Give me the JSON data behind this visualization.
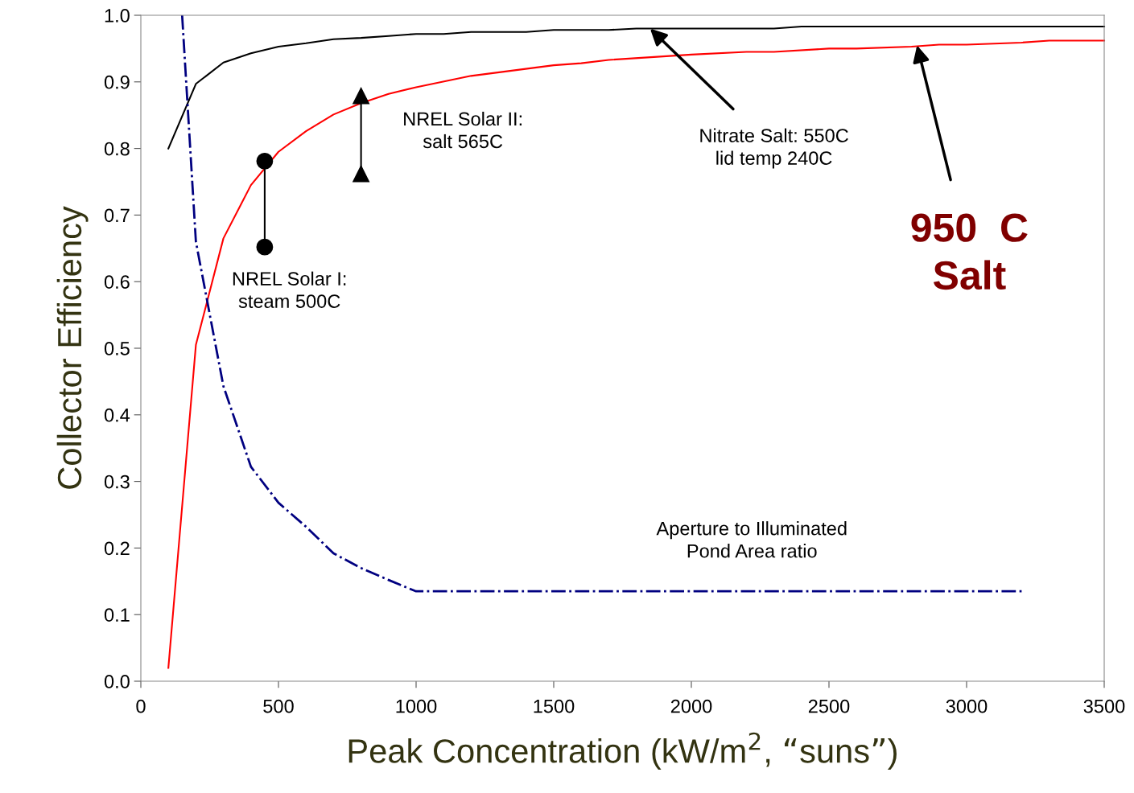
{
  "chart_data": {
    "type": "line",
    "xlabel": "Peak Concentration (kW/m$^{2}$, “suns”)",
    "ylabel": "Collector Efficiency",
    "xlim": [
      0,
      3500
    ],
    "xticks": [
      0,
      500,
      1000,
      1500,
      2000,
      2500,
      3000,
      3500
    ],
    "ylim": [
      0,
      1
    ],
    "yticks": [
      {
        "value": 0,
        "label": "0.0"
      },
      {
        "value": 0.1,
        "label": "0.1"
      },
      {
        "value": 0.2,
        "label": "0.2"
      },
      {
        "value": 0.3,
        "label": "0.3"
      },
      {
        "value": 0.4,
        "label": "0.4"
      },
      {
        "value": 0.5,
        "label": "0.5"
      },
      {
        "value": 0.6,
        "label": "0.6"
      },
      {
        "value": 0.7,
        "label": "0.7"
      },
      {
        "value": 0.8,
        "label": "0.8"
      },
      {
        "value": 0.9,
        "label": "0.9"
      },
      {
        "value": 1,
        "label": "1.0"
      }
    ],
    "grid": false,
    "legend": false,
    "series": [
      {
        "color": "#000000",
        "line_style": "solid",
        "marker": "none",
        "x": [
          100,
          200,
          300,
          400,
          500,
          600,
          700,
          800,
          900,
          1000,
          1100,
          1200,
          1400,
          1500,
          1700,
          1800,
          2300,
          2400,
          3500
        ],
        "values": [
          0.8,
          0.897,
          0.929,
          0.943,
          0.953,
          0.958,
          0.964,
          0.966,
          0.969,
          0.972,
          0.972,
          0.975,
          0.975,
          0.978,
          0.978,
          0.98,
          0.98,
          0.983,
          0.983
        ]
      },
      {
        "color": "#ff0000",
        "line_style": "solid",
        "marker": "none",
        "x": [
          100,
          200,
          300,
          400,
          500,
          600,
          700,
          800,
          900,
          1000,
          1200,
          1500,
          1600,
          1700,
          2000,
          2200,
          2300,
          2500,
          2600,
          2800,
          2900,
          3000,
          3200,
          3300,
          3500
        ],
        "values": [
          0.02,
          0.505,
          0.665,
          0.745,
          0.795,
          0.826,
          0.851,
          0.868,
          0.882,
          0.892,
          0.909,
          0.925,
          0.928,
          0.933,
          0.941,
          0.945,
          0.945,
          0.95,
          0.95,
          0.953,
          0.956,
          0.956,
          0.959,
          0.962,
          0.962
        ]
      },
      {
        "color": "#000080",
        "line_style": "dashdot",
        "marker": "none",
        "x": [
          150,
          200,
          300,
          400,
          500,
          600,
          700,
          800,
          900,
          1000,
          3200
        ],
        "values": [
          1.0,
          0.66,
          0.443,
          0.322,
          0.268,
          0.232,
          0.192,
          0.17,
          0.152,
          0.135,
          0.135
        ]
      },
      {
        "color": "#000000",
        "line_style": "solid",
        "marker": "circle",
        "x": [
          450,
          450
        ],
        "values": [
          0.781,
          0.652
        ]
      },
      {
        "color": "#000000",
        "line_style": "solid",
        "marker": "triangle",
        "x": [
          800,
          800
        ],
        "values": [
          0.879,
          0.762
        ]
      }
    ],
    "annotations": [
      "NREL Solar I:\nsteam 500C",
      "NREL Solar II:\nsalt 565C",
      {
        "text": "Nitrate Salt: 550C\nlid temp 240C",
        "x": 1850,
        "y": 0.98
      },
      {
        "text": "950  C\nSalt",
        "x": 2820,
        "y": 0.955
      },
      "Aperture to Illuminated\nPond Area ratio"
    ]
  }
}
